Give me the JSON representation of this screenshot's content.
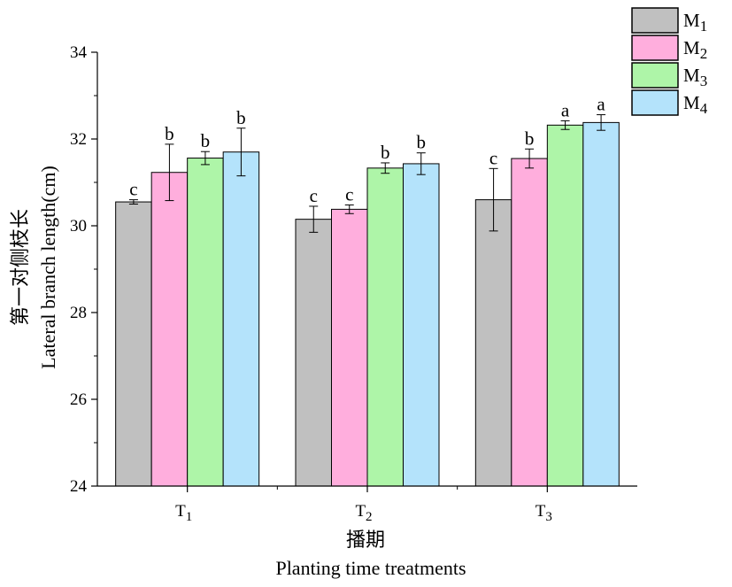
{
  "chart_data": {
    "type": "bar",
    "categories": [
      {
        "base": "T",
        "sub": "1"
      },
      {
        "base": "T",
        "sub": "2"
      },
      {
        "base": "T",
        "sub": "3"
      }
    ],
    "series": [
      {
        "name": {
          "base": "M",
          "sub": "1"
        },
        "color": "#c0c0c0",
        "values": [
          30.55,
          30.15,
          30.6
        ],
        "errors": [
          0.05,
          0.3,
          0.72
        ],
        "letters": [
          "c",
          "c",
          "c"
        ]
      },
      {
        "name": {
          "base": "M",
          "sub": "2"
        },
        "color": "#ffaedd",
        "values": [
          31.23,
          30.38,
          31.55
        ],
        "errors": [
          0.65,
          0.1,
          0.22
        ],
        "letters": [
          "b",
          "c",
          "b"
        ]
      },
      {
        "name": {
          "base": "M",
          "sub": "3"
        },
        "color": "#aef5a8",
        "values": [
          31.56,
          31.33,
          32.32
        ],
        "errors": [
          0.15,
          0.12,
          0.1
        ],
        "letters": [
          "b",
          "b",
          "a"
        ]
      },
      {
        "name": {
          "base": "M",
          "sub": "4"
        },
        "color": "#b4e3fb",
        "values": [
          31.7,
          31.43,
          32.38
        ],
        "errors": [
          0.55,
          0.25,
          0.18
        ],
        "letters": [
          "b",
          "b",
          "a"
        ]
      }
    ],
    "ylim": [
      24,
      34
    ],
    "yticks": [
      24,
      26,
      28,
      30,
      32,
      34
    ],
    "ylabel_cn": "第一对侧枝长",
    "ylabel": "Lateral branch length(cm)",
    "xlabel_cn": "播期",
    "xlabel": "Planting time treatments",
    "legend_position": "top-right",
    "grid": false
  }
}
